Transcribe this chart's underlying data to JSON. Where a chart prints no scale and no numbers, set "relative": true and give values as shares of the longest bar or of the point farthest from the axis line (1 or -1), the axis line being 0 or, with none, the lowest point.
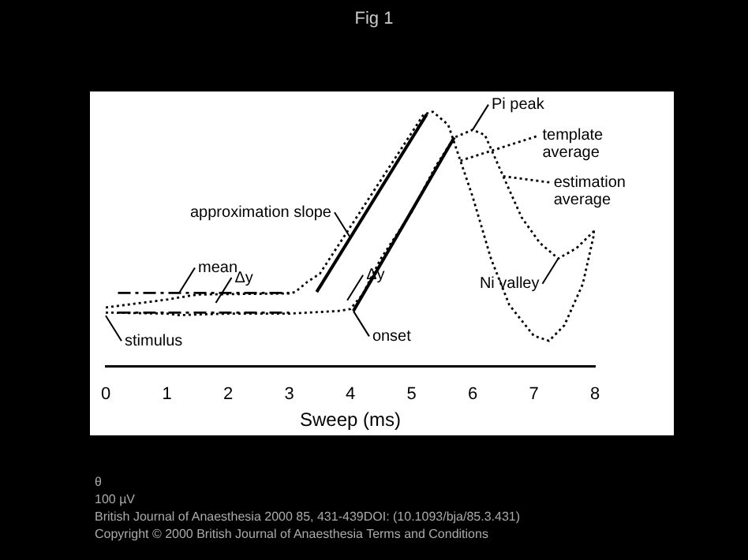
{
  "chart_data": {
    "type": "line",
    "title": "Fig 1",
    "xlabel": "Sweep (ms)",
    "relative": true,
    "xlim": [
      0,
      8
    ],
    "xticks": [
      0,
      1,
      2,
      3,
      4,
      5,
      6,
      7,
      8
    ],
    "grid": false,
    "legend": "right",
    "marker": "none",
    "series": [
      {
        "name": "template average",
        "color": "#000000",
        "line_style": "dotted",
        "x": [
          0,
          1,
          1.5,
          3,
          3.1,
          3.3,
          3.5,
          5.2,
          5.35,
          5.6,
          5.8,
          6,
          6.3,
          6.6,
          7,
          7.25,
          7.5,
          7.8,
          8
        ],
        "values": [
          0.232,
          0.263,
          0.283,
          0.287,
          0.293,
          0.333,
          0.364,
          0.99,
          1.0,
          0.949,
          0.808,
          0.667,
          0.424,
          0.242,
          0.121,
          0.101,
          0.162,
          0.323,
          0.535
        ]
      },
      {
        "name": "estimation average",
        "color": "#000000",
        "line_style": "dotted",
        "x": [
          0,
          1,
          1.2,
          2,
          3,
          3.8,
          4,
          4.2,
          4.5,
          5,
          5.4,
          5.7,
          6,
          6.2,
          6.5,
          6.8,
          7.1,
          7.4,
          7.7,
          8
        ],
        "values": [
          0.212,
          0.208,
          0.202,
          0.208,
          0.208,
          0.218,
          0.226,
          0.283,
          0.424,
          0.606,
          0.788,
          0.899,
          0.929,
          0.909,
          0.747,
          0.586,
          0.485,
          0.424,
          0.465,
          0.535
        ]
      },
      {
        "color": "#000000",
        "line_style": "solid",
        "x": [
          3.45,
          5.25
        ],
        "values": [
          0.293,
          0.99
        ]
      },
      {
        "color": "#000000",
        "line_style": "solid",
        "x": [
          4.05,
          5.7
        ],
        "values": [
          0.218,
          0.899
        ]
      },
      {
        "color": "#000000",
        "line_style": "dashed",
        "x": [
          0.2,
          3.0
        ],
        "values": [
          0.289,
          0.289
        ]
      },
      {
        "color": "#000000",
        "line_style": "dashed",
        "x": [
          0.2,
          3.0
        ],
        "values": [
          0.212,
          0.212
        ]
      }
    ],
    "annotations": [
      {
        "text": "Pi peak",
        "x": 6.0,
        "y": 0.929
      },
      {
        "text": "Ni valley",
        "x": 7.4,
        "y": 0.424
      },
      {
        "text": "onset",
        "x": 4.05,
        "y": 0.218
      },
      {
        "text": "approximation slope",
        "x": 4.0,
        "y": 0.506
      },
      {
        "text": "mean",
        "x": 1.2,
        "y": 0.289
      },
      {
        "text": "stimulus",
        "x": 0,
        "y": 0.2
      },
      {
        "text": "Δy",
        "x": 1.8,
        "y": 0.25
      },
      {
        "text": "Δy",
        "x": 3.95,
        "y": 0.26
      },
      "θ",
      "100 µV",
      "British Journal of Anaesthesia 2000 85, 431-439DOI: (10.1093/bja/85.3.431)",
      "Copyright © 2000 British Journal of Anaesthesia Terms and Conditions"
    ]
  }
}
